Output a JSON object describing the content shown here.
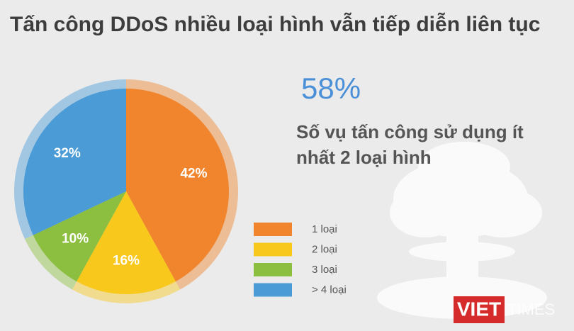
{
  "chart_data": {
    "type": "pie",
    "title": "Tấn công DDoS nhiều loại hình vẫn tiếp diễn liên tục",
    "highlight": "58%",
    "highlight_text": "Số vụ tấn công sử dụng ít nhất 2 loại hình",
    "categories": [
      "1 loại",
      "2 loại",
      "3 loại",
      "> 4 loại"
    ],
    "values": [
      42,
      16,
      10,
      32
    ],
    "value_labels": [
      "42%",
      "16%",
      "10%",
      "32%"
    ],
    "colors": [
      "#f0852d",
      "#f8c81c",
      "#8cbf40",
      "#4a9bd6"
    ],
    "logo": [
      "VIET",
      "TIMES"
    ]
  }
}
